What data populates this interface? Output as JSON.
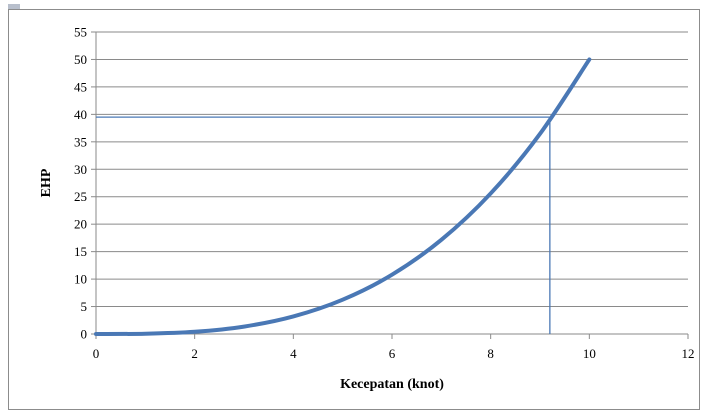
{
  "chart_data": {
    "type": "line",
    "xlabel": "Kecepatan (knot)",
    "ylabel": "EHP",
    "xlim": [
      0,
      12
    ],
    "ylim": [
      0,
      55
    ],
    "x_ticks": [
      0,
      2,
      4,
      6,
      8,
      10,
      12
    ],
    "y_ticks": [
      0,
      5,
      10,
      15,
      20,
      25,
      30,
      35,
      40,
      45,
      50,
      55
    ],
    "grid": "horizontal",
    "legend": "none",
    "series": [
      {
        "color": "#4a78b5",
        "x": [
          0,
          1,
          2,
          3,
          4,
          5,
          6,
          7,
          8,
          9,
          10
        ],
        "y": [
          0,
          0.05,
          0.4,
          1.35,
          3.2,
          6.25,
          10.8,
          17.15,
          25.6,
          36.45,
          50
        ]
      }
    ],
    "reference_lines": [
      {
        "type": "horizontal",
        "y": 39.5,
        "x_from": 0,
        "x_to": 9.2,
        "color": "#4a78b5"
      },
      {
        "type": "vertical",
        "x": 9.2,
        "y_from": 0,
        "y_to": 39.5,
        "color": "#4a78b5"
      }
    ]
  }
}
